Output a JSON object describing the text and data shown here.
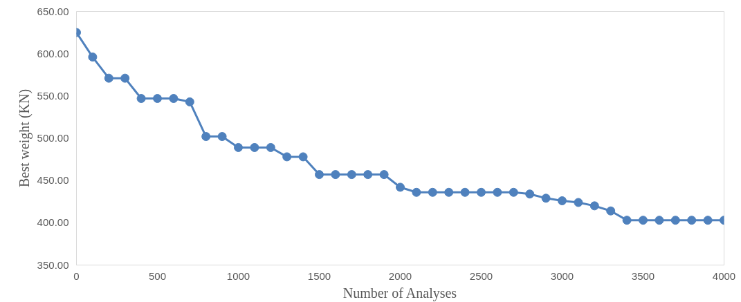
{
  "chart_data": {
    "type": "line",
    "xlabel": "Number of Analyses",
    "ylabel": "Best weight (KN)",
    "x": [
      0,
      100,
      200,
      300,
      400,
      500,
      600,
      700,
      800,
      900,
      1000,
      1100,
      1200,
      1300,
      1400,
      1500,
      1600,
      1700,
      1800,
      1900,
      2000,
      2100,
      2200,
      2300,
      2400,
      2500,
      2600,
      2700,
      2800,
      2900,
      3000,
      3100,
      3200,
      3300,
      3400,
      3500,
      3600,
      3700,
      3800,
      3900,
      4000
    ],
    "series": [
      {
        "color": "#4f81bd",
        "values": [
          625,
          596,
          571,
          571,
          547,
          547,
          547,
          543,
          502,
          502,
          489,
          489,
          489,
          478,
          478,
          457,
          457,
          457,
          457,
          457,
          442,
          436,
          436,
          436,
          436,
          436,
          436,
          436,
          434,
          429,
          426,
          424,
          420,
          414,
          403,
          403,
          403,
          403,
          403,
          403,
          403
        ]
      }
    ],
    "xlim": [
      0,
      4000
    ],
    "xticks": [
      0,
      500,
      1000,
      1500,
      2000,
      2500,
      3000,
      3500,
      4000
    ],
    "ylim": [
      350,
      650
    ],
    "yticks": [
      {
        "value": 350,
        "label": "350.00"
      },
      {
        "value": 400,
        "label": "400.00"
      },
      {
        "value": 450,
        "label": "450.00"
      },
      {
        "value": 500,
        "label": "500.00"
      },
      {
        "value": 550,
        "label": "550.00"
      },
      {
        "value": 600,
        "label": "600.00"
      },
      {
        "value": 650,
        "label": "650.00"
      }
    ],
    "marker": "circle",
    "grid": false
  }
}
